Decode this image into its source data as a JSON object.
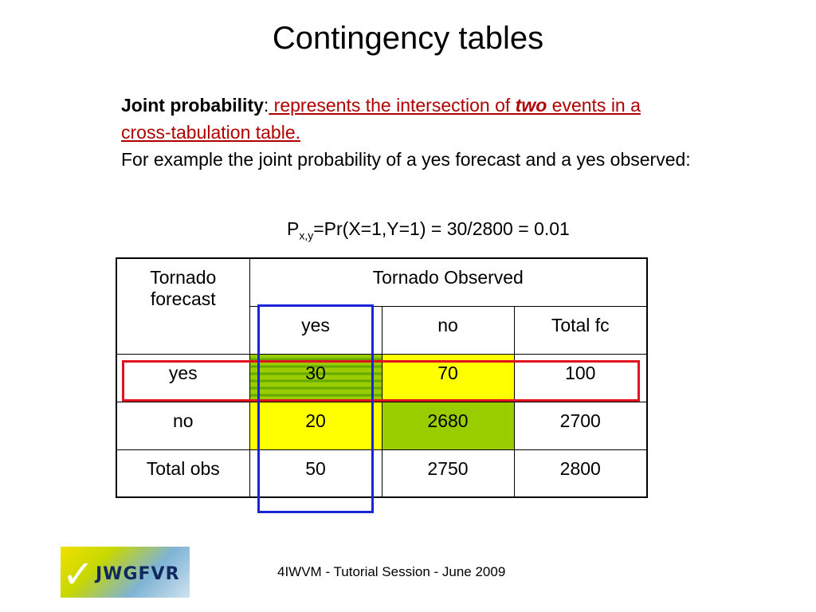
{
  "slide": {
    "title": "Contingency tables",
    "definition": {
      "term": "Joint probability",
      "colon": ":",
      "text_part1": " represents the intersection of ",
      "emphasis": "two",
      "text_part2": " events in a cross-tabulation table.",
      "example": "For example the joint probability of a yes forecast and a yes observed:"
    },
    "formula": {
      "p": "P",
      "subscript": "x,y",
      "rest": "=Pr(X=1,Y=1) = 30/2800 = 0.01"
    },
    "table": {
      "corner": "Tornado forecast",
      "observed_header": "Tornado Observed",
      "col_headers": [
        "yes",
        "no",
        "Total fc"
      ],
      "rows": [
        {
          "label": "yes",
          "values": [
            "30",
            "70",
            "100"
          ]
        },
        {
          "label": "no",
          "values": [
            "20",
            "2680",
            "2700"
          ]
        },
        {
          "label": "Total obs",
          "values": [
            "50",
            "2750",
            "2800"
          ]
        }
      ]
    },
    "colors": {
      "hit_cell": "#9acd00",
      "yellow_cell": "#ffff00",
      "red_box": "#e0141e",
      "blue_box": "#1a24d8",
      "definition_text": "#b00000"
    },
    "logo": {
      "icon": "checkmark-icon",
      "text": "JWGFVR"
    },
    "footer": "4IWVM - Tutorial Session - June 2009"
  }
}
